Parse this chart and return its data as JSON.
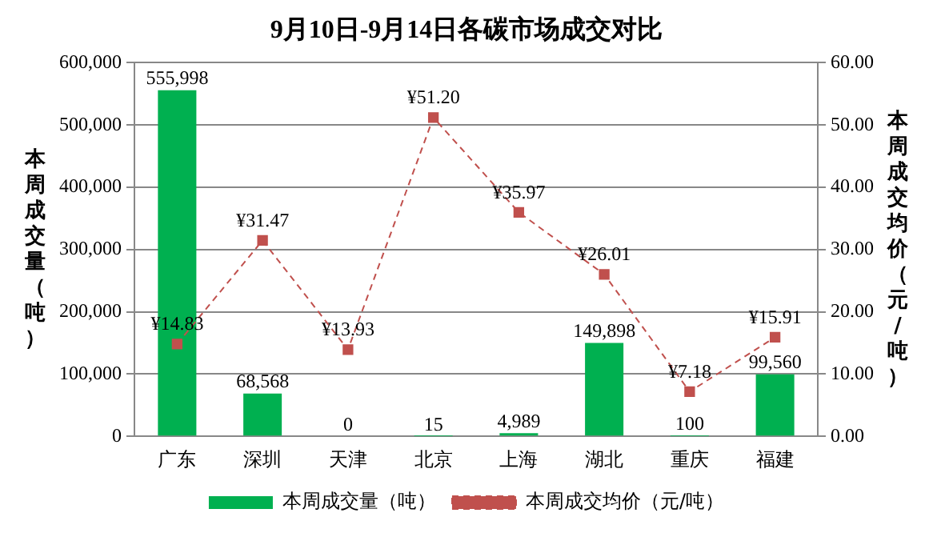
{
  "chart_data": {
    "type": "bar",
    "title": "9月10日-9月14日各碳市场成交对比",
    "ylabel": "本周成交量（吨）",
    "y2label": "本周成交均价（元/吨）",
    "categories": [
      "广东",
      "深圳",
      "天津",
      "北京",
      "上海",
      "湖北",
      "重庆",
      "福建"
    ],
    "series": [
      {
        "name": "本周成交量（吨）",
        "color": "#00b050",
        "values": [
          555998,
          68568,
          0,
          15,
          4989,
          149898,
          100,
          99560
        ],
        "value_labels": [
          "555,998",
          "68,568",
          "0",
          "15",
          "4,989",
          "149,898",
          "100",
          "99,560"
        ]
      },
      {
        "name": "本周成交均价（元/吨）",
        "type": "line",
        "axis": "y2",
        "color": "#c0504d",
        "line_style": "dashed",
        "marker": "square",
        "values": [
          14.83,
          31.47,
          13.93,
          51.2,
          35.97,
          26.01,
          7.18,
          15.91
        ],
        "value_labels": [
          "¥14.83",
          "¥31.47",
          "¥13.93",
          "¥51.20",
          "¥35.97",
          "¥26.01",
          "¥7.18",
          "¥15.91"
        ]
      }
    ],
    "ylim": [
      0,
      600000
    ],
    "yticks": [
      0,
      {
        "value": 100000,
        "label": "100,000"
      },
      {
        "value": 200000,
        "label": "200,000"
      },
      {
        "value": 300000,
        "label": "300,000"
      },
      {
        "value": 400000,
        "label": "400,000"
      },
      {
        "value": 500000,
        "label": "500,000"
      },
      {
        "value": 600000,
        "label": "600,000"
      }
    ],
    "y2lim": [
      0,
      60
    ],
    "y2ticks": [
      {
        "value": 0,
        "label": "0.00"
      },
      {
        "value": 10,
        "label": "10.00"
      },
      {
        "value": 20,
        "label": "20.00"
      },
      {
        "value": 30,
        "label": "30.00"
      },
      {
        "value": 40,
        "label": "40.00"
      },
      {
        "value": 50,
        "label": "50.00"
      },
      {
        "value": 60,
        "label": "60.00"
      }
    ],
    "grid": "y",
    "legend": "bottom"
  }
}
